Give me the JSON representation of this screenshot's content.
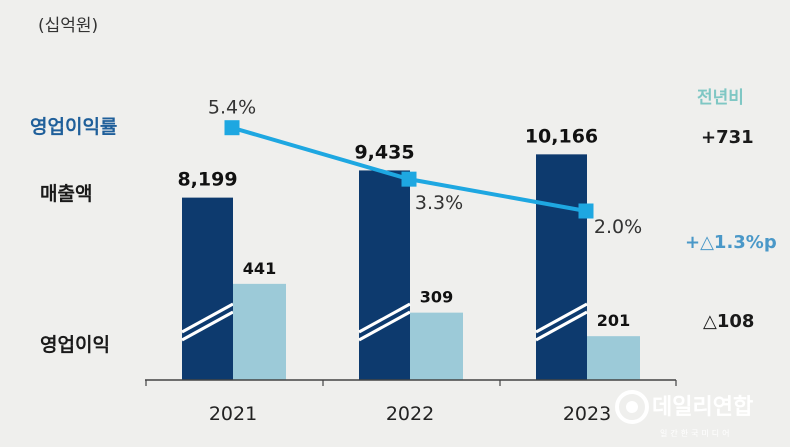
{
  "unit_label": "(십억원)",
  "row_labels": {
    "operating_margin": "영업이익률",
    "sales": "매출액",
    "operating_profit": "영업이익"
  },
  "yoy": {
    "header": "전년비",
    "sales": "+731",
    "operating_margin": "+△1.3%p",
    "operating_profit": "△108"
  },
  "colors": {
    "sales_bar": "#0d3a6e",
    "profit_bar": "#9ccad8",
    "margin_line": "#1ea7e1",
    "background": "#efefed"
  },
  "chart_data": {
    "type": "bar",
    "categories": [
      "2021",
      "2022",
      "2023"
    ],
    "series": [
      {
        "name": "매출액",
        "type": "bar",
        "values": [
          8199,
          9435,
          10166
        ],
        "labels": [
          "8,199",
          "9,435",
          "10,166"
        ],
        "axis_break": true
      },
      {
        "name": "영업이익",
        "type": "bar",
        "values": [
          441,
          309,
          201
        ],
        "labels": [
          "441",
          "309",
          "201"
        ]
      },
      {
        "name": "영업이익률",
        "type": "line",
        "values": [
          5.4,
          3.3,
          2.0
        ],
        "labels": [
          "5.4%",
          "3.3%",
          "2.0%"
        ]
      }
    ],
    "title": "",
    "xlabel": "",
    "ylabel": "(십억원)",
    "grid": false,
    "legend": "left"
  },
  "watermark": {
    "brand": "데일리연합",
    "sub": "일간한국미디어"
  }
}
